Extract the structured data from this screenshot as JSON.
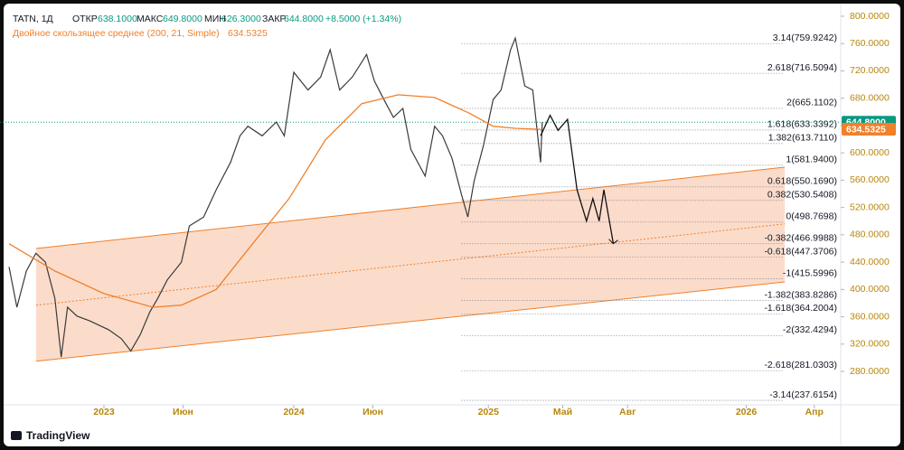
{
  "chart_data": {
    "type": "line",
    "header": {
      "symbol": "TATN, 1Д",
      "o_label": "ОТКР",
      "o": "638.1000",
      "h_label": "МАКС",
      "h": "649.8000",
      "l_label": "МИН",
      "l": "626.3000",
      "c_label": "ЗАКР",
      "c": "644.8000",
      "change": "+8.5000 (+1.34%)",
      "indicator": "Двойное скользящее среднее (200, 21, Simple)",
      "indicator_value": "634.5325"
    },
    "brand": "TradingView",
    "xlim": [
      -6.57,
      46.57
    ],
    "ylim": [
      231.1,
      823.8
    ],
    "xticks": [
      {
        "value": 0,
        "label": "2023"
      },
      {
        "value": 5,
        "label": "Июн"
      },
      {
        "value": 12,
        "label": "2024"
      },
      {
        "value": 17,
        "label": "Июн"
      },
      {
        "value": 24.3,
        "label": "2025"
      },
      {
        "value": 29,
        "label": "Май"
      },
      {
        "value": 33.1,
        "label": "Авг"
      },
      {
        "value": 40.6,
        "label": "2026"
      },
      {
        "value": 44.9,
        "label": "Апр"
      }
    ],
    "yticks": [
      {
        "value": 280,
        "label": "280.0000"
      },
      {
        "value": 320,
        "label": "320.0000"
      },
      {
        "value": 360,
        "label": "360.0000"
      },
      {
        "value": 400,
        "label": "400.0000"
      },
      {
        "value": 440,
        "label": "440.0000"
      },
      {
        "value": 480,
        "label": "480.0000"
      },
      {
        "value": 520,
        "label": "520.0000"
      },
      {
        "value": 560,
        "label": "560.0000"
      },
      {
        "value": 600,
        "label": "600.0000"
      },
      {
        "value": 640,
        "label": "640.0000"
      },
      {
        "value": 680,
        "label": "680.0000"
      },
      {
        "value": 720,
        "label": "720.0000"
      },
      {
        "value": 760,
        "label": "760.0000"
      },
      {
        "value": 800,
        "label": "800.0000"
      }
    ],
    "series": [
      {
        "name": "TATN",
        "color": "#3a3a3a",
        "x": [
          -6.0,
          -5.5,
          -4.9,
          -4.3,
          -3.7,
          -3.1,
          -2.7,
          -2.3,
          -1.7,
          -0.9,
          0.3,
          1.1,
          1.7,
          2.3,
          2.9,
          3.4,
          4.0,
          4.9,
          5.4,
          6.3,
          7.1,
          8.0,
          8.6,
          9.1,
          10.0,
          10.9,
          11.4,
          12.0,
          12.9,
          13.7,
          14.3,
          14.9,
          15.7,
          16.6,
          17.1,
          17.7,
          18.3,
          18.9,
          19.4,
          20.3,
          20.9,
          21.4,
          22.0,
          22.6,
          23.0,
          23.4,
          24.0,
          24.6,
          25.1,
          25.7,
          26.0,
          26.6,
          27.1,
          27.6,
          27.7
        ],
        "values": [
          433,
          374,
          427,
          453,
          440,
          387,
          301,
          374,
          361,
          354,
          341,
          328,
          310,
          334,
          367,
          387,
          414,
          440,
          493,
          506,
          546,
          586,
          625,
          639,
          625,
          645,
          625,
          718,
          692,
          711,
          751,
          692,
          711,
          744,
          705,
          678,
          652,
          665,
          605,
          566,
          639,
          625,
          592,
          539,
          506,
          559,
          612,
          678,
          692,
          751,
          768,
          698,
          692,
          586,
          645
        ]
      },
      {
        "name": "MA",
        "color": "#f0802a",
        "x": [
          -6.0,
          -3.1,
          0,
          3.1,
          4.9,
          7.1,
          9.4,
          11.7,
          14.0,
          16.3,
          18.6,
          20.9,
          23.1,
          24.6,
          26.0,
          27.6
        ],
        "values": [
          467,
          427,
          394,
          374,
          377,
          400,
          467,
          533,
          619,
          672,
          685,
          681,
          658,
          639,
          636,
          634.5
        ]
      },
      {
        "name": "forecast",
        "color": "#111111",
        "x": [
          27.6,
          28.2,
          28.7,
          29.3,
          29.9,
          30.5,
          30.9,
          31.3,
          31.6,
          32.2
        ],
        "values": [
          625,
          655,
          633,
          649,
          546,
          500,
          533,
          500,
          546,
          467
        ]
      }
    ],
    "channel": {
      "x": [
        -4.29,
        43.03
      ],
      "upper": [
        460,
        579
      ],
      "lower": [
        295,
        411
      ],
      "mid": [
        377,
        496
      ],
      "color": "#f0802a",
      "fill": "#f9cdb5"
    },
    "fib_x": [
      22.6,
      43.0
    ],
    "fib_levels": [
      {
        "value": 759.9242,
        "label": "3.14(759.9242)"
      },
      {
        "value": 716.5094,
        "label": "2.618(716.5094)"
      },
      {
        "value": 665.1102,
        "label": "2(665.1102)"
      },
      {
        "value": 633.3392,
        "label": "1.618(633.3392)"
      },
      {
        "value": 613.711,
        "label": "1.382(613.7110)"
      },
      {
        "value": 581.94,
        "label": "1(581.9400)"
      },
      {
        "value": 550.169,
        "label": "0.618(550.1690)"
      },
      {
        "value": 530.5408,
        "label": "0.382(530.5408)"
      },
      {
        "value": 498.7698,
        "label": "0(498.7698)"
      },
      {
        "value": 466.9988,
        "label": "-0.382(466.9988)"
      },
      {
        "value": 447.3706,
        "label": "-0.618(447.3706)"
      },
      {
        "value": 415.5996,
        "label": "-1(415.5996)"
      },
      {
        "value": 383.8286,
        "label": "-1.382(383.8286)"
      },
      {
        "value": 364.2004,
        "label": "-1.618(364.2004)"
      },
      {
        "value": 332.4294,
        "label": "-2(332.4294)"
      },
      {
        "value": 281.0303,
        "label": "-2.618(281.0303)"
      },
      {
        "value": 237.6154,
        "label": "-3.14(237.6154)"
      }
    ],
    "last_price": {
      "value": 644.8,
      "label": "644.8000",
      "color": "#089981"
    },
    "ma_last": {
      "value": 634.5325,
      "label": "634.5325",
      "color": "#f0802a"
    }
  }
}
